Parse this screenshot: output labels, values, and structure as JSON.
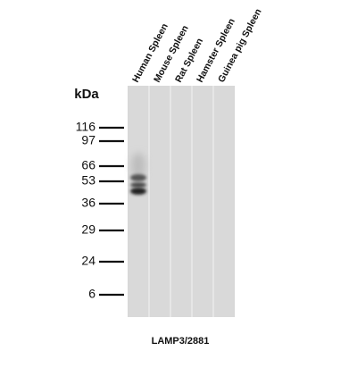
{
  "lanes": [
    "Human Spleen",
    "Mouse Spleen",
    "Rat Spleen",
    "Hamster Spleen",
    "Guinea pig Spleen"
  ],
  "unit_label": "kDa",
  "markers": [
    "116",
    "97",
    "66",
    "53",
    "36",
    "29",
    "24",
    "6"
  ],
  "caption": "LAMP3/2881"
}
